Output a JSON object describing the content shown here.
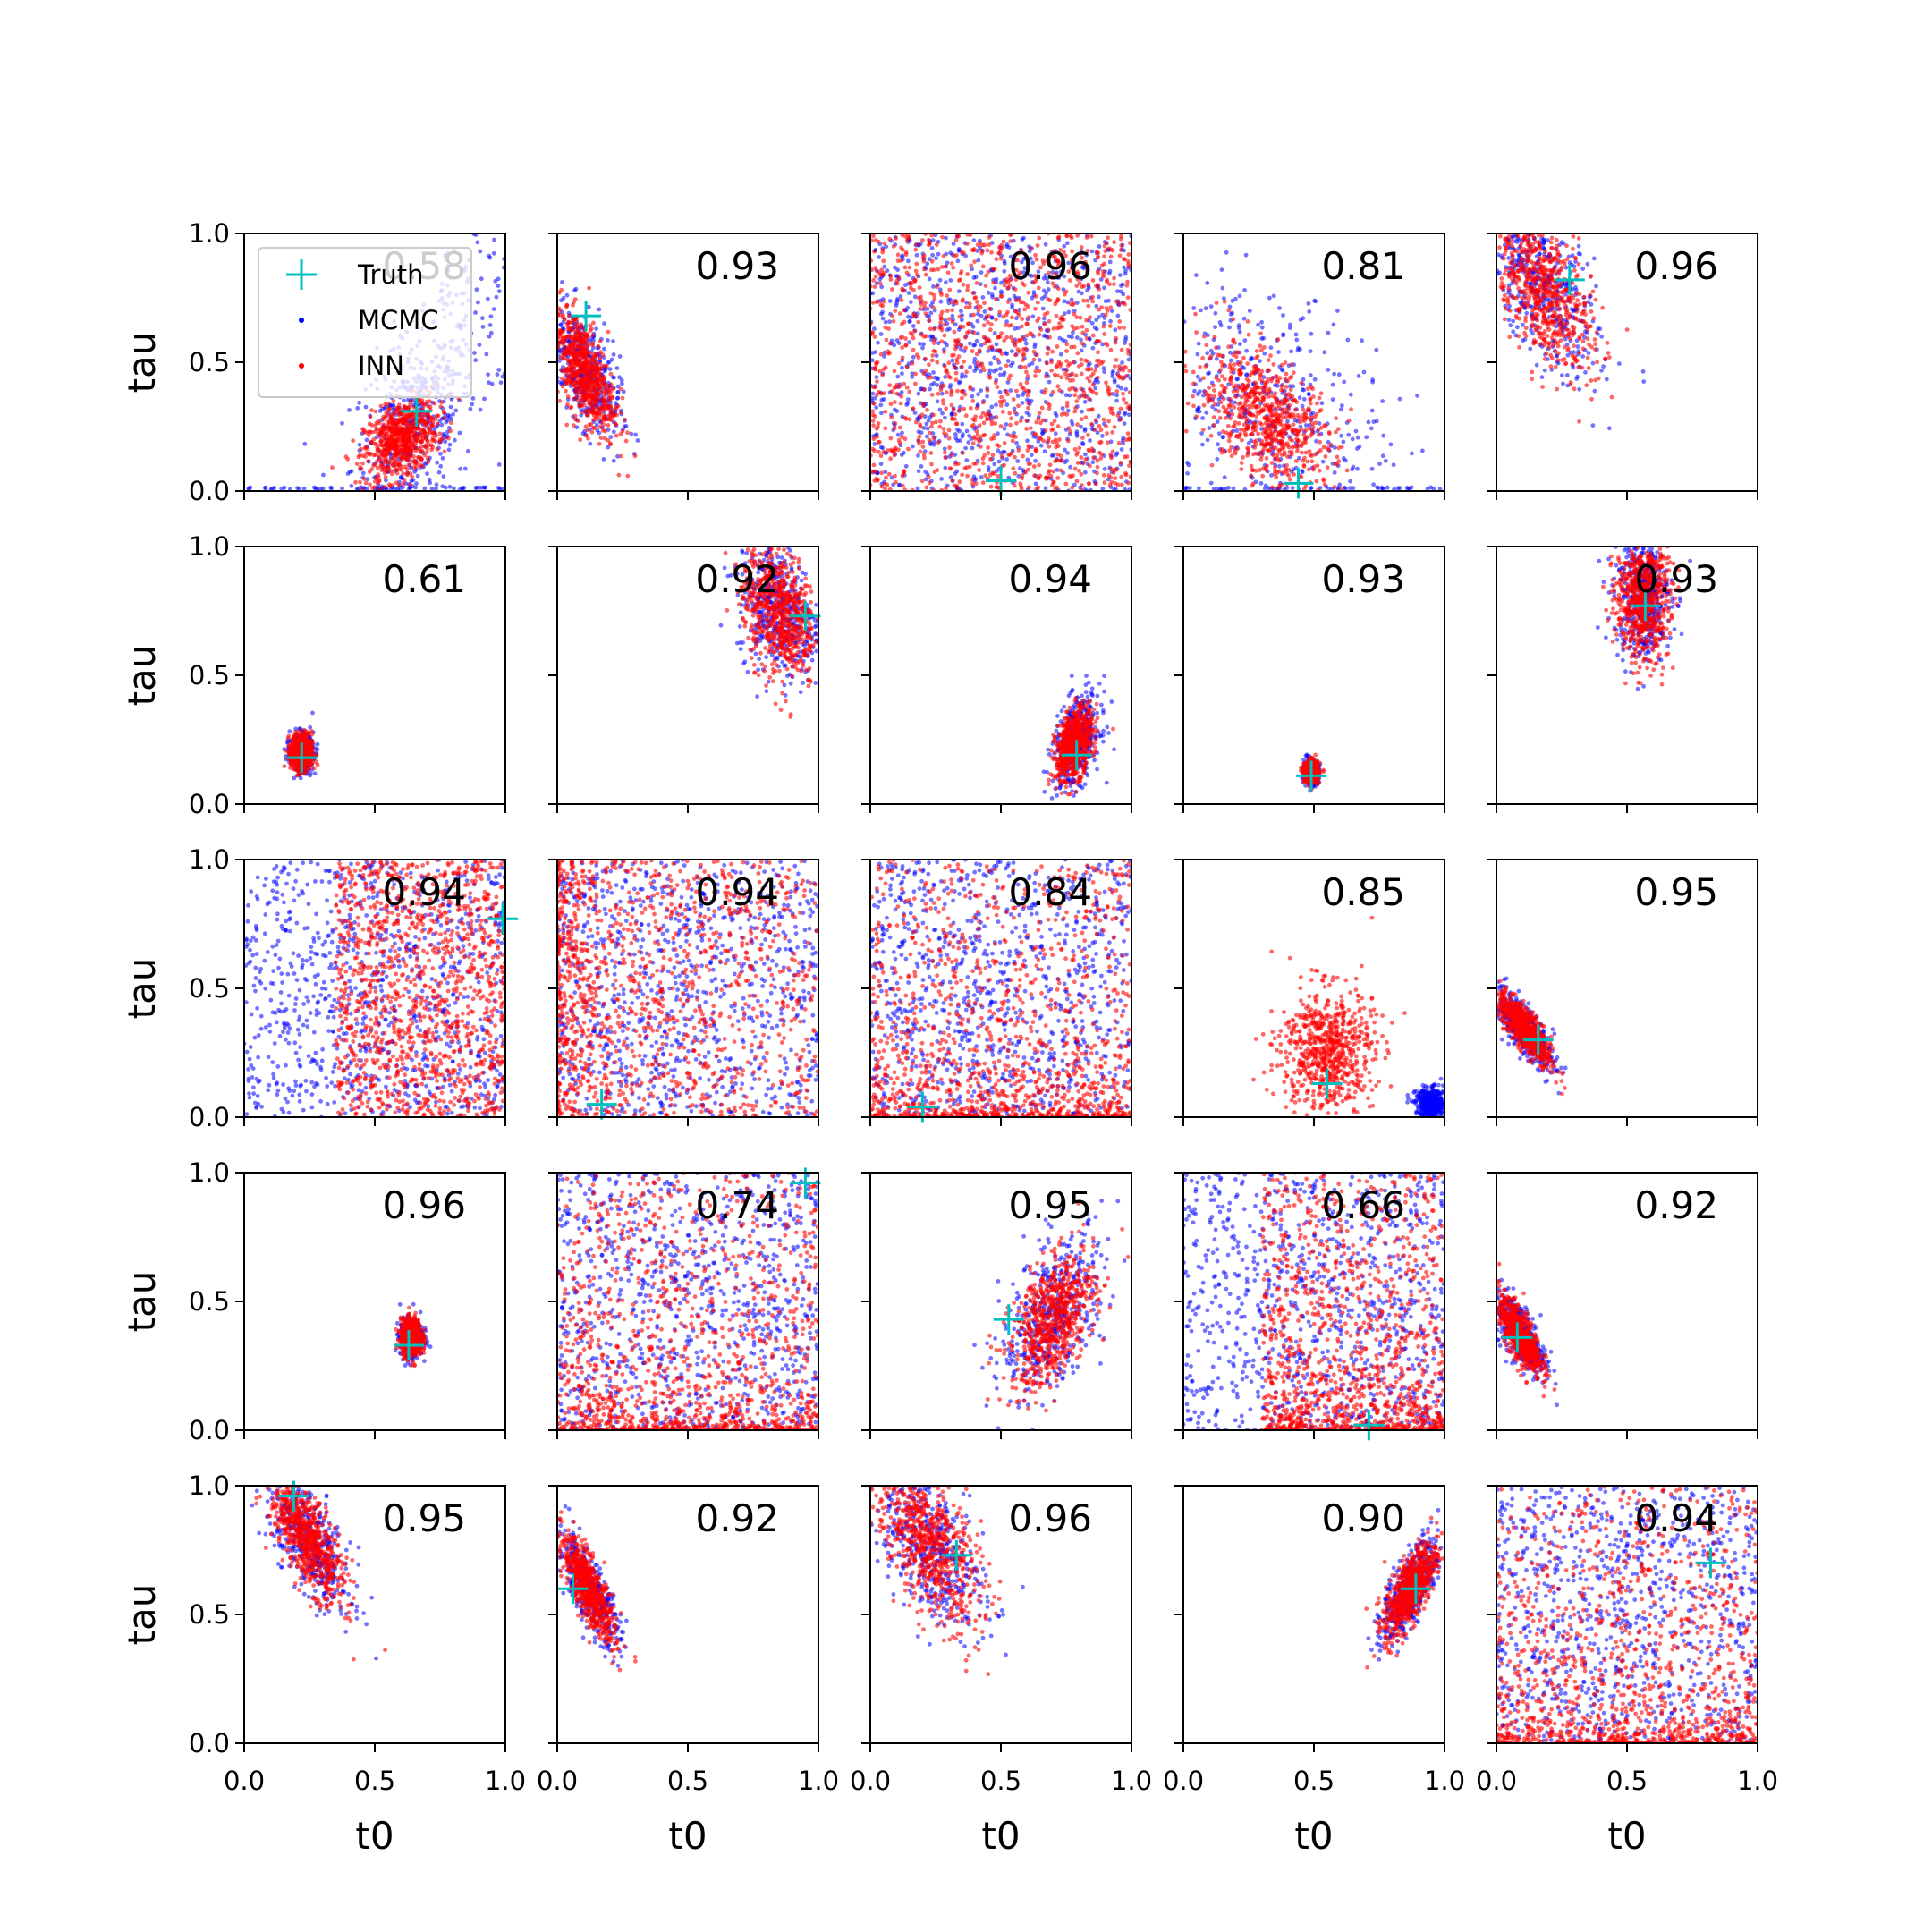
{
  "figure": {
    "xlabel": "t0",
    "ylabel": "tau",
    "xticks": [
      "0.0",
      "0.5",
      "1.0"
    ],
    "yticks": [
      "0.0",
      "0.5",
      "1.0"
    ],
    "legend": {
      "truth": "Truth",
      "mcmc": "MCMC",
      "inn": "INN",
      "placement": "upper-left of first panel"
    },
    "colors": {
      "mcmc": "#0000ff",
      "inn": "#ff0000",
      "truth": "#00bfbf",
      "axes": "#000000"
    }
  },
  "chart_data": [
    {
      "type": "scatter",
      "row": 1,
      "col": 1,
      "score": "0.58",
      "truth": [
        0.66,
        0.31
      ],
      "xlim": [
        0,
        1
      ],
      "ylim": [
        0,
        1
      ],
      "cloud": {
        "inn": {
          "cx": 0.6,
          "cy": 0.2,
          "sx": 0.07,
          "sy": 0.08,
          "rho": 0.4,
          "clip": true
        },
        "mcmc": {
          "cx": 0.65,
          "cy": 0.25,
          "sx": 0.12,
          "sy": 0.2,
          "rho": 0.4,
          "clip": true,
          "tail": "ribbon"
        }
      }
    },
    {
      "type": "scatter",
      "row": 1,
      "col": 2,
      "score": "0.93",
      "truth": [
        0.11,
        0.68
      ],
      "xlim": [
        0,
        1
      ],
      "ylim": [
        0,
        1
      ],
      "cloud": {
        "inn": {
          "cx": 0.1,
          "cy": 0.47,
          "sx": 0.06,
          "sy": 0.12,
          "rho": -0.6,
          "clip": true
        },
        "mcmc": {
          "cx": 0.1,
          "cy": 0.47,
          "sx": 0.07,
          "sy": 0.13,
          "rho": -0.6,
          "clip": true
        }
      }
    },
    {
      "type": "scatter",
      "row": 1,
      "col": 3,
      "score": "0.96",
      "truth": [
        0.5,
        0.04
      ],
      "xlim": [
        0,
        1
      ],
      "ylim": [
        0,
        1
      ],
      "cloud": {
        "inn": {
          "uniform": true
        },
        "mcmc": {
          "uniform": true
        }
      }
    },
    {
      "type": "scatter",
      "row": 1,
      "col": 4,
      "score": "0.81",
      "truth": [
        0.44,
        0.03
      ],
      "xlim": [
        0,
        1
      ],
      "ylim": [
        0,
        1
      ],
      "cloud": {
        "inn": {
          "cx": 0.32,
          "cy": 0.28,
          "sx": 0.13,
          "sy": 0.14,
          "rho": -0.5,
          "clip": true
        },
        "mcmc": {
          "cx": 0.35,
          "cy": 0.3,
          "sx": 0.22,
          "sy": 0.25,
          "rho": -0.4,
          "clip": true,
          "tail": "bottom"
        }
      }
    },
    {
      "type": "scatter",
      "row": 1,
      "col": 5,
      "score": "0.96",
      "truth": [
        0.28,
        0.82
      ],
      "xlim": [
        0,
        1
      ],
      "ylim": [
        0,
        1
      ],
      "cloud": {
        "inn": {
          "cx": 0.17,
          "cy": 0.8,
          "sx": 0.1,
          "sy": 0.17,
          "rho": -0.6,
          "clip": true
        },
        "mcmc": {
          "cx": 0.17,
          "cy": 0.8,
          "sx": 0.11,
          "sy": 0.18,
          "rho": -0.6,
          "clip": true
        }
      }
    },
    {
      "type": "scatter",
      "row": 2,
      "col": 1,
      "score": "0.61",
      "truth": [
        0.22,
        0.18
      ],
      "xlim": [
        0,
        1
      ],
      "ylim": [
        0,
        1
      ],
      "cloud": {
        "inn": {
          "cx": 0.22,
          "cy": 0.2,
          "sx": 0.02,
          "sy": 0.035,
          "rho": 0,
          "clip": true
        },
        "mcmc": {
          "cx": 0.22,
          "cy": 0.2,
          "sx": 0.022,
          "sy": 0.036,
          "rho": 0,
          "clip": true
        }
      }
    },
    {
      "type": "scatter",
      "row": 2,
      "col": 2,
      "score": "0.92",
      "truth": [
        0.95,
        0.73
      ],
      "xlim": [
        0,
        1
      ],
      "ylim": [
        0,
        1
      ],
      "cloud": {
        "inn": {
          "cx": 0.85,
          "cy": 0.75,
          "sx": 0.07,
          "sy": 0.13,
          "rho": -0.3,
          "clip": true
        },
        "mcmc": {
          "cx": 0.85,
          "cy": 0.75,
          "sx": 0.08,
          "sy": 0.13,
          "rho": -0.3,
          "clip": true
        }
      }
    },
    {
      "type": "scatter",
      "row": 2,
      "col": 3,
      "score": "0.94",
      "truth": [
        0.79,
        0.19
      ],
      "xlim": [
        0,
        1
      ],
      "ylim": [
        0,
        1
      ],
      "cloud": {
        "inn": {
          "cx": 0.78,
          "cy": 0.23,
          "sx": 0.035,
          "sy": 0.07,
          "rho": 0.4,
          "clip": true
        },
        "mcmc": {
          "cx": 0.79,
          "cy": 0.24,
          "sx": 0.045,
          "sy": 0.09,
          "rho": 0.4,
          "clip": true
        }
      }
    },
    {
      "type": "scatter",
      "row": 2,
      "col": 4,
      "score": "0.93",
      "truth": [
        0.49,
        0.11
      ],
      "xlim": [
        0,
        1
      ],
      "ylim": [
        0,
        1
      ],
      "cloud": {
        "inn": {
          "cx": 0.49,
          "cy": 0.125,
          "sx": 0.013,
          "sy": 0.02,
          "rho": 0,
          "clip": true
        },
        "mcmc": {
          "cx": 0.49,
          "cy": 0.125,
          "sx": 0.014,
          "sy": 0.022,
          "rho": 0,
          "clip": true
        }
      }
    },
    {
      "type": "scatter",
      "row": 2,
      "col": 5,
      "score": "0.93",
      "truth": [
        0.57,
        0.77
      ],
      "xlim": [
        0,
        1
      ],
      "ylim": [
        0,
        1
      ],
      "cloud": {
        "inn": {
          "cx": 0.56,
          "cy": 0.8,
          "sx": 0.05,
          "sy": 0.12,
          "rho": 0,
          "clip": true
        },
        "mcmc": {
          "cx": 0.56,
          "cy": 0.8,
          "sx": 0.055,
          "sy": 0.12,
          "rho": 0,
          "clip": true
        }
      }
    },
    {
      "type": "scatter",
      "row": 3,
      "col": 1,
      "score": "0.94",
      "truth": [
        0.99,
        0.77
      ],
      "xlim": [
        0,
        1
      ],
      "ylim": [
        0,
        1
      ],
      "cloud": {
        "inn": {
          "halfUniform": [
            0.35,
            1.0
          ]
        },
        "mcmc": {
          "uniform": true
        }
      }
    },
    {
      "type": "scatter",
      "row": 3,
      "col": 2,
      "score": "0.94",
      "truth": [
        0.17,
        0.05
      ],
      "xlim": [
        0,
        1
      ],
      "ylim": [
        0,
        1
      ],
      "cloud": {
        "inn": {
          "uniform": true,
          "dense": "left"
        },
        "mcmc": {
          "uniform": true
        }
      }
    },
    {
      "type": "scatter",
      "row": 3,
      "col": 3,
      "score": "0.84",
      "truth": [
        0.2,
        0.04
      ],
      "xlim": [
        0,
        1
      ],
      "ylim": [
        0,
        1
      ],
      "cloud": {
        "inn": {
          "uniform": true,
          "dense": "bottom"
        },
        "mcmc": {
          "uniform": true
        }
      }
    },
    {
      "type": "scatter",
      "row": 3,
      "col": 4,
      "score": "0.85",
      "truth": [
        0.55,
        0.13
      ],
      "xlim": [
        0,
        1
      ],
      "ylim": [
        0,
        1
      ],
      "cloud": {
        "inn": {
          "cx": 0.55,
          "cy": 0.26,
          "sx": 0.09,
          "sy": 0.12,
          "rho": 0,
          "clip": true
        },
        "mcmc": {
          "cx": 0.95,
          "cy": 0.05,
          "sx": 0.03,
          "sy": 0.03,
          "rho": 0,
          "clip": true
        }
      }
    },
    {
      "type": "scatter",
      "row": 3,
      "col": 5,
      "score": "0.95",
      "truth": [
        0.16,
        0.3
      ],
      "xlim": [
        0,
        1
      ],
      "ylim": [
        0,
        1
      ],
      "cloud": {
        "inn": {
          "cx": 0.11,
          "cy": 0.34,
          "sx": 0.05,
          "sy": 0.07,
          "rho": -0.8,
          "clip": true
        },
        "mcmc": {
          "cx": 0.1,
          "cy": 0.35,
          "sx": 0.06,
          "sy": 0.08,
          "rho": -0.8,
          "clip": true
        }
      }
    },
    {
      "type": "scatter",
      "row": 4,
      "col": 1,
      "score": "0.96",
      "truth": [
        0.63,
        0.33
      ],
      "xlim": [
        0,
        1
      ],
      "ylim": [
        0,
        1
      ],
      "cloud": {
        "inn": {
          "cx": 0.64,
          "cy": 0.36,
          "sx": 0.02,
          "sy": 0.035,
          "rho": 0,
          "clip": true
        },
        "mcmc": {
          "cx": 0.64,
          "cy": 0.36,
          "sx": 0.022,
          "sy": 0.036,
          "rho": 0,
          "clip": true
        }
      }
    },
    {
      "type": "scatter",
      "row": 4,
      "col": 2,
      "score": "0.74",
      "truth": [
        0.95,
        0.96
      ],
      "xlim": [
        0,
        1
      ],
      "ylim": [
        0,
        1
      ],
      "cloud": {
        "inn": {
          "uniform": true,
          "dense": "bottom"
        },
        "mcmc": {
          "uniform": true
        }
      }
    },
    {
      "type": "scatter",
      "row": 4,
      "col": 3,
      "score": "0.95",
      "truth": [
        0.53,
        0.43
      ],
      "xlim": [
        0,
        1
      ],
      "ylim": [
        0,
        1
      ],
      "cloud": {
        "inn": {
          "cx": 0.7,
          "cy": 0.43,
          "sx": 0.08,
          "sy": 0.13,
          "rho": 0.5,
          "clip": true
        },
        "mcmc": {
          "cx": 0.7,
          "cy": 0.45,
          "sx": 0.1,
          "sy": 0.16,
          "rho": 0.5,
          "clip": true
        }
      }
    },
    {
      "type": "scatter",
      "row": 4,
      "col": 4,
      "score": "0.66",
      "truth": [
        0.71,
        0.02
      ],
      "xlim": [
        0,
        1
      ],
      "ylim": [
        0,
        1
      ],
      "cloud": {
        "inn": {
          "halfUniform": [
            0.3,
            1.0
          ],
          "dense": "bottom"
        },
        "mcmc": {
          "uniform": true
        }
      }
    },
    {
      "type": "scatter",
      "row": 4,
      "col": 5,
      "score": "0.92",
      "truth": [
        0.08,
        0.36
      ],
      "xlim": [
        0,
        1
      ],
      "ylim": [
        0,
        1
      ],
      "cloud": {
        "inn": {
          "cx": 0.09,
          "cy": 0.37,
          "sx": 0.04,
          "sy": 0.07,
          "rho": -0.7,
          "clip": true
        },
        "mcmc": {
          "cx": 0.09,
          "cy": 0.38,
          "sx": 0.05,
          "sy": 0.08,
          "rho": -0.7,
          "clip": true
        }
      }
    },
    {
      "type": "scatter",
      "row": 5,
      "col": 1,
      "score": "0.95",
      "truth": [
        0.19,
        0.96
      ],
      "xlim": [
        0,
        1
      ],
      "ylim": [
        0,
        1
      ],
      "cloud": {
        "inn": {
          "cx": 0.24,
          "cy": 0.8,
          "sx": 0.07,
          "sy": 0.12,
          "rho": -0.7,
          "clip": true
        },
        "mcmc": {
          "cx": 0.25,
          "cy": 0.78,
          "sx": 0.08,
          "sy": 0.13,
          "rho": -0.7,
          "clip": true
        }
      }
    },
    {
      "type": "scatter",
      "row": 5,
      "col": 2,
      "score": "0.92",
      "truth": [
        0.06,
        0.6
      ],
      "xlim": [
        0,
        1
      ],
      "ylim": [
        0,
        1
      ],
      "cloud": {
        "inn": {
          "cx": 0.12,
          "cy": 0.6,
          "sx": 0.05,
          "sy": 0.1,
          "rho": -0.8,
          "clip": true
        },
        "mcmc": {
          "cx": 0.12,
          "cy": 0.6,
          "sx": 0.06,
          "sy": 0.11,
          "rho": -0.8,
          "clip": true
        }
      }
    },
    {
      "type": "scatter",
      "row": 5,
      "col": 3,
      "score": "0.96",
      "truth": [
        0.33,
        0.73
      ],
      "xlim": [
        0,
        1
      ],
      "ylim": [
        0,
        1
      ],
      "cloud": {
        "inn": {
          "cx": 0.22,
          "cy": 0.78,
          "sx": 0.1,
          "sy": 0.16,
          "rho": -0.6,
          "clip": true
        },
        "mcmc": {
          "cx": 0.22,
          "cy": 0.78,
          "sx": 0.11,
          "sy": 0.17,
          "rho": -0.6,
          "clip": true
        }
      }
    },
    {
      "type": "scatter",
      "row": 5,
      "col": 4,
      "score": "0.90",
      "truth": [
        0.89,
        0.6
      ],
      "xlim": [
        0,
        1
      ],
      "ylim": [
        0,
        1
      ],
      "cloud": {
        "inn": {
          "cx": 0.87,
          "cy": 0.6,
          "sx": 0.05,
          "sy": 0.09,
          "rho": 0.7,
          "clip": true
        },
        "mcmc": {
          "cx": 0.87,
          "cy": 0.6,
          "sx": 0.055,
          "sy": 0.1,
          "rho": 0.7,
          "clip": true
        }
      }
    },
    {
      "type": "scatter",
      "row": 5,
      "col": 5,
      "score": "0.94",
      "truth": [
        0.82,
        0.7
      ],
      "xlim": [
        0,
        1
      ],
      "ylim": [
        0,
        1
      ],
      "cloud": {
        "inn": {
          "uniform": true,
          "dense": "bottom"
        },
        "mcmc": {
          "uniform": true
        }
      }
    }
  ]
}
